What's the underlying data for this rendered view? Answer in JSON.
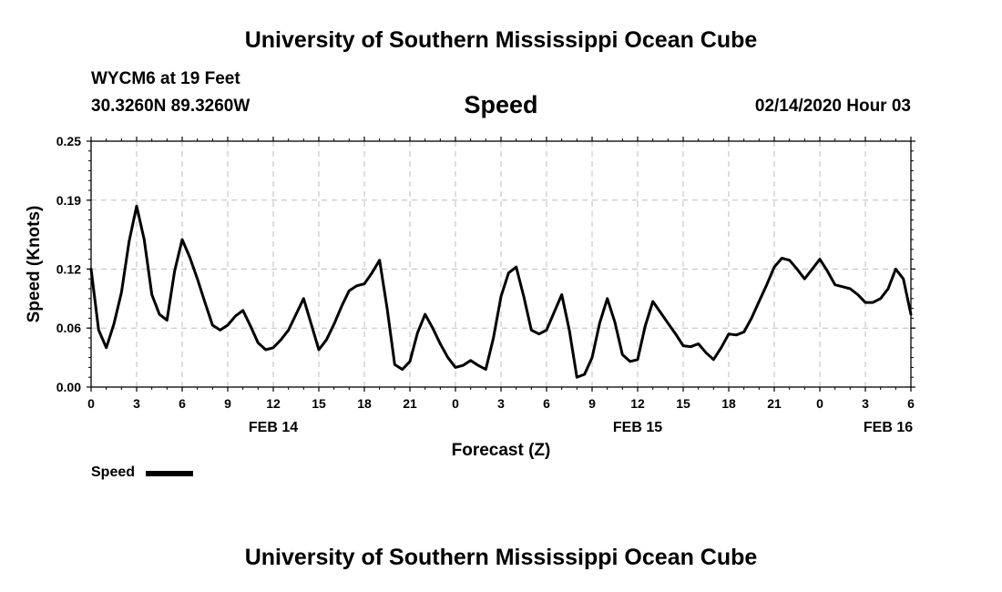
{
  "header": {
    "title": "University of Southern Mississippi Ocean Cube",
    "station": "WYCM6 at 19 Feet",
    "coordinates": "30.3260N 89.3260W",
    "plot_title": "Speed",
    "timestamp": "02/14/2020 Hour 03"
  },
  "footer": {
    "title": "University of Southern Mississippi Ocean Cube"
  },
  "legend": {
    "label": "Speed",
    "color": "#000000"
  },
  "chart_data": {
    "type": "line",
    "title": "Speed",
    "xlabel": "Forecast (Z)",
    "ylabel": "Speed (Knots)",
    "ylim": [
      0,
      0.25
    ],
    "xlim": [
      0,
      54
    ],
    "y_ticks": [
      0,
      0.06,
      0.12,
      0.19,
      0.25
    ],
    "y_tick_labels": [
      "0.00",
      "0.06",
      "0.12",
      "0.19",
      "0.25"
    ],
    "x_ticks": [
      0,
      3,
      6,
      9,
      12,
      15,
      18,
      21,
      24,
      27,
      30,
      33,
      36,
      39,
      42,
      45,
      48,
      51,
      54
    ],
    "x_tick_labels": [
      "0",
      "3",
      "6",
      "9",
      "12",
      "15",
      "18",
      "21",
      "0",
      "3",
      "6",
      "9",
      "12",
      "15",
      "18",
      "21",
      "0",
      "3",
      "6"
    ],
    "date_labels": [
      {
        "x": 12,
        "label": "FEB 14"
      },
      {
        "x": 36,
        "label": "FEB 15"
      },
      {
        "x": 52.5,
        "label": "FEB 16"
      }
    ],
    "grid": true,
    "series": [
      {
        "name": "Speed",
        "color": "#000000",
        "x": [
          0,
          0.5,
          1,
          1.5,
          2,
          2.5,
          3,
          3.5,
          4,
          4.5,
          5,
          5.5,
          6,
          6.5,
          7,
          7.5,
          8,
          8.5,
          9,
          9.5,
          10,
          10.5,
          11,
          11.5,
          12,
          12.5,
          13,
          13.5,
          14,
          14.5,
          15,
          15.5,
          16,
          16.5,
          17,
          17.5,
          18,
          18.5,
          19,
          19.5,
          20,
          20.5,
          21,
          21.5,
          22,
          22.5,
          23,
          23.5,
          24,
          24.5,
          25,
          25.5,
          26,
          26.5,
          27,
          27.5,
          28,
          28.5,
          29,
          29.5,
          30,
          30.5,
          31,
          31.5,
          32,
          32.5,
          33,
          33.5,
          34,
          34.5,
          35,
          35.5,
          36,
          36.5,
          37,
          37.5,
          38,
          38.5,
          39,
          39.5,
          40,
          40.5,
          41,
          41.5,
          42,
          42.5,
          43,
          43.5,
          44,
          44.5,
          45,
          45.5,
          46,
          46.5,
          47,
          47.5,
          48,
          48.5,
          49,
          49.5,
          50,
          50.5,
          51,
          51.5,
          52,
          52.5,
          53,
          53.5,
          54
        ],
        "values": [
          0.12,
          0.058,
          0.04,
          0.064,
          0.096,
          0.148,
          0.184,
          0.15,
          0.094,
          0.074,
          0.068,
          0.118,
          0.15,
          0.132,
          0.11,
          0.086,
          0.063,
          0.058,
          0.063,
          0.072,
          0.078,
          0.062,
          0.045,
          0.038,
          0.04,
          0.048,
          0.058,
          0.074,
          0.09,
          0.064,
          0.038,
          0.048,
          0.064,
          0.082,
          0.098,
          0.103,
          0.105,
          0.116,
          0.129,
          0.08,
          0.023,
          0.018,
          0.026,
          0.055,
          0.074,
          0.06,
          0.044,
          0.03,
          0.02,
          0.022,
          0.027,
          0.022,
          0.018,
          0.05,
          0.092,
          0.116,
          0.122,
          0.092,
          0.058,
          0.054,
          0.058,
          0.076,
          0.094,
          0.058,
          0.01,
          0.013,
          0.03,
          0.065,
          0.09,
          0.066,
          0.033,
          0.026,
          0.028,
          0.062,
          0.087,
          0.076,
          0.065,
          0.054,
          0.042,
          0.041,
          0.044,
          0.035,
          0.028,
          0.04,
          0.054,
          0.053,
          0.056,
          0.07,
          0.087,
          0.104,
          0.122,
          0.131,
          0.129,
          0.12,
          0.11,
          0.12,
          0.13,
          0.118,
          0.104,
          0.102,
          0.1,
          0.094,
          0.086,
          0.086,
          0.09,
          0.1,
          0.12,
          0.11,
          0.074
        ]
      }
    ]
  }
}
